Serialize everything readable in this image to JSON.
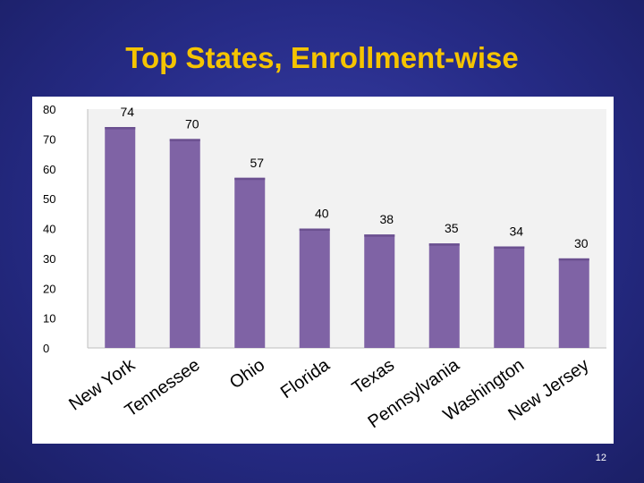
{
  "slide": {
    "title": "Top States, Enrollment-wise",
    "page_number": "12"
  },
  "colors": {
    "background": "#262b86",
    "title": "#f5c400",
    "bar": "#7f63a5",
    "bar_top": "#6b5090"
  },
  "chart_data": {
    "type": "bar",
    "title": "",
    "xlabel": "",
    "ylabel": "",
    "categories": [
      "New York",
      "Tennessee",
      "Ohio",
      "Florida",
      "Texas",
      "Pennsylvania",
      "Washington",
      "New Jersey"
    ],
    "values": [
      74,
      70,
      57,
      40,
      38,
      35,
      34,
      30
    ],
    "data_labels": [
      "74",
      "70",
      "57",
      "40",
      "38",
      "35",
      "34",
      "30"
    ],
    "ylim": [
      0,
      80
    ],
    "yticks": [
      "0",
      "10",
      "20",
      "30",
      "40",
      "50",
      "60",
      "70",
      "80"
    ],
    "grid": false,
    "legend": "none"
  }
}
